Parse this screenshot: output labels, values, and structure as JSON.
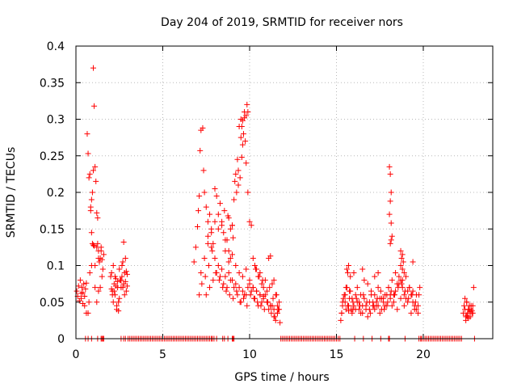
{
  "chart_data": {
    "type": "scatter",
    "title": "Day 204 of 2019, SRMTID for receiver nors",
    "xlabel": "GPS time / hours",
    "ylabel": "SRMTID / TECUs",
    "xlim": [
      0,
      24
    ],
    "ylim": [
      0,
      0.4
    ],
    "xticks": [
      0,
      5,
      10,
      15,
      20
    ],
    "xtick_labels": [
      "0",
      "5",
      "10",
      "15",
      "20"
    ],
    "yticks": [
      0,
      0.05,
      0.1,
      0.15,
      0.2,
      0.25,
      0.3,
      0.35,
      0.4
    ],
    "ytick_labels": [
      "0",
      "0.05",
      "0.1",
      "0.15",
      "0.2",
      "0.25",
      "0.3",
      "0.35",
      "0.4"
    ],
    "grid": true,
    "marker": "plus",
    "color": "#ff0000",
    "series": [
      {
        "name": "SRMTID",
        "x": [
          0.05,
          0.1,
          0.15,
          0.2,
          0.25,
          0.3,
          0.35,
          0.4,
          0.45,
          0.5,
          0.55,
          0.6,
          0.65,
          0.7,
          0.75,
          0.8,
          0.85,
          0.9,
          0.95,
          1.0,
          1.05,
          1.1,
          1.15,
          1.2,
          1.25,
          1.3,
          1.35,
          1.4,
          1.45,
          1.5,
          1.55,
          1.6,
          0.3,
          0.5,
          0.7,
          0.9,
          1.1,
          1.3,
          1.5,
          0.4,
          0.8,
          1.2,
          1.0,
          1.05,
          1.1,
          0.85,
          0.9,
          0.95,
          1.0,
          1.2,
          1.3,
          1.4,
          0.6,
          0.75,
          1.25,
          1.45,
          2.0,
          2.05,
          2.1,
          2.15,
          2.2,
          2.25,
          2.3,
          2.35,
          2.4,
          2.45,
          2.5,
          2.55,
          2.6,
          2.65,
          2.7,
          2.75,
          2.8,
          2.85,
          2.9,
          2.95,
          2.1,
          2.3,
          2.5,
          2.7,
          2.9,
          2.2,
          2.4,
          2.6,
          2.8,
          2.15,
          2.35,
          2.55,
          2.75,
          2.25,
          2.45,
          2.65,
          2.85,
          2.05,
          2.95,
          6.8,
          6.9,
          7.0,
          7.05,
          7.1,
          7.15,
          7.2,
          7.3,
          7.4,
          7.5,
          7.6,
          7.7,
          7.8,
          7.9,
          8.0,
          8.1,
          8.2,
          8.3,
          8.4,
          8.5,
          8.6,
          8.7,
          8.8,
          8.9,
          9.0,
          9.1,
          9.2,
          9.3,
          9.4,
          9.5,
          9.6,
          9.7,
          9.8,
          9.9,
          10.0,
          10.1,
          10.2,
          10.3,
          10.4,
          10.5,
          10.6,
          10.7,
          10.8,
          10.9,
          11.0,
          11.1,
          11.2,
          11.3,
          11.4,
          11.5,
          11.6,
          11.7,
          7.2,
          7.4,
          7.6,
          7.8,
          8.0,
          8.2,
          8.4,
          8.6,
          8.8,
          9.0,
          9.2,
          9.4,
          9.6,
          9.8,
          10.0,
          10.2,
          10.4,
          10.6,
          10.8,
          11.0,
          11.2,
          11.4,
          11.6,
          7.25,
          7.45,
          7.65,
          7.85,
          8.05,
          8.25,
          8.45,
          8.65,
          8.85,
          9.05,
          9.25,
          9.45,
          9.65,
          9.85,
          10.05,
          10.25,
          10.45,
          10.65,
          10.85,
          11.05,
          11.25,
          11.45,
          7.5,
          7.7,
          7.9,
          8.1,
          8.3,
          8.5,
          8.7,
          8.9,
          9.1,
          9.3,
          9.5,
          9.7,
          9.9,
          10.1,
          10.3,
          10.5,
          10.7,
          10.9,
          11.1,
          11.3,
          11.5,
          7.6,
          7.8,
          8.0,
          8.2,
          8.4,
          8.6,
          8.8,
          9.0,
          9.2,
          9.4,
          9.6,
          9.8,
          10.0,
          10.2,
          10.4,
          10.6,
          10.8,
          11.0,
          11.2,
          11.4,
          7.1,
          7.35,
          8.55,
          8.75,
          9.15,
          9.35,
          9.55,
          9.75,
          9.45,
          9.5,
          9.55,
          9.6,
          9.65,
          9.7,
          9.25,
          9.35,
          9.8,
          9.85,
          9.9,
          8.8,
          8.9,
          9.0,
          9.05,
          10.35,
          10.55,
          10.75,
          11.15,
          11.35,
          11.55,
          11.6,
          11.65,
          11.75,
          11.7,
          15.25,
          15.3,
          15.35,
          15.4,
          15.45,
          15.5,
          15.55,
          15.6,
          15.65,
          15.7,
          15.75,
          15.8,
          15.85,
          15.9,
          15.95,
          16.0,
          16.1,
          16.2,
          16.3,
          16.4,
          16.5,
          16.6,
          16.7,
          16.8,
          16.9,
          17.0,
          17.1,
          17.2,
          17.3,
          17.4,
          17.5,
          17.6,
          17.7,
          17.8,
          17.9,
          18.0,
          18.1,
          18.2,
          18.3,
          18.4,
          18.5,
          18.6,
          18.7,
          18.8,
          18.9,
          19.0,
          19.1,
          19.2,
          19.3,
          19.4,
          19.5,
          19.6,
          19.7,
          19.8,
          15.3,
          15.5,
          15.7,
          15.9,
          16.1,
          16.3,
          16.5,
          16.7,
          16.9,
          17.1,
          17.3,
          17.5,
          17.7,
          17.9,
          18.1,
          18.3,
          18.5,
          18.7,
          18.9,
          19.1,
          19.3,
          19.5,
          19.7,
          15.35,
          15.55,
          15.75,
          15.95,
          16.15,
          16.35,
          16.55,
          16.75,
          16.95,
          17.15,
          17.35,
          17.55,
          17.75,
          17.95,
          18.15,
          18.35,
          18.55,
          18.75,
          18.95,
          19.15,
          19.35,
          19.55,
          19.75,
          15.6,
          15.8,
          16.0,
          16.2,
          16.4,
          16.6,
          16.8,
          17.0,
          17.2,
          17.4,
          17.6,
          17.8,
          18.0,
          18.2,
          18.4,
          18.6,
          18.8,
          19.0,
          19.2,
          19.4,
          19.6,
          18.05,
          18.1,
          18.15,
          18.1,
          18.05,
          18.15,
          18.2,
          18.1,
          18.15,
          18.7,
          18.75,
          18.8,
          18.85,
          18.7,
          18.8,
          18.9,
          19.4,
          15.65,
          15.7,
          16.5,
          17.2,
          17.4,
          22.3,
          22.35,
          22.4,
          22.45,
          22.5,
          22.55,
          22.6,
          22.65,
          22.7,
          22.75,
          22.8,
          22.85,
          22.4,
          22.5,
          22.6,
          22.7,
          22.8,
          22.45,
          22.55,
          22.65,
          22.75,
          22.85,
          22.9,
          22.5,
          22.6,
          0.55,
          0.7,
          0.9,
          1.25,
          1.45,
          1.5,
          1.55,
          1.6,
          2.6,
          2.75,
          2.85,
          3.0,
          3.1,
          3.2,
          3.3,
          3.4,
          3.5,
          3.6,
          3.7,
          3.8,
          3.9,
          4.0,
          4.1,
          4.2,
          4.3,
          4.4,
          4.5,
          4.6,
          4.7,
          4.8,
          4.9,
          5.0,
          5.1,
          5.2,
          5.3,
          5.4,
          5.5,
          5.6,
          5.7,
          5.8,
          5.9,
          6.0,
          6.1,
          6.2,
          6.3,
          6.4,
          6.5,
          6.6,
          6.7,
          6.8,
          6.9,
          7.0,
          7.1,
          7.2,
          7.3,
          7.4,
          7.5,
          7.6,
          7.7,
          7.8,
          7.85,
          7.95,
          8.1,
          8.45,
          8.55,
          8.75,
          9.0,
          9.05,
          9.1,
          11.8,
          11.9,
          12.0,
          12.1,
          12.2,
          12.3,
          12.4,
          12.5,
          12.6,
          12.7,
          12.8,
          12.9,
          13.0,
          13.1,
          13.2,
          13.3,
          13.4,
          13.5,
          13.6,
          13.7,
          13.8,
          13.9,
          14.0,
          14.1,
          14.2,
          14.3,
          14.4,
          14.5,
          14.6,
          14.7,
          14.8,
          14.9,
          15.0,
          15.1,
          15.2,
          16.05,
          16.55,
          17.05,
          17.55,
          18.0,
          18.05,
          18.95,
          19.75,
          19.85,
          19.9,
          20.0,
          20.1,
          20.2,
          20.3,
          20.4,
          20.5,
          20.6,
          20.7,
          20.8,
          20.9,
          21.0,
          21.1,
          21.2,
          21.3,
          21.4,
          21.5,
          21.6,
          21.7,
          21.8,
          21.9,
          22.0,
          22.1,
          22.2,
          22.95
        ],
        "y": [
          0.065,
          0.058,
          0.072,
          0.052,
          0.08,
          0.062,
          0.07,
          0.048,
          0.075,
          0.058,
          0.068,
          0.076,
          0.28,
          0.253,
          0.22,
          0.225,
          0.18,
          0.145,
          0.13,
          0.37,
          0.318,
          0.235,
          0.215,
          0.172,
          0.165,
          0.12,
          0.105,
          0.11,
          0.125,
          0.108,
          0.095,
          0.115,
          0.055,
          0.045,
          0.035,
          0.1,
          0.07,
          0.065,
          0.085,
          0.063,
          0.09,
          0.125,
          0.128,
          0.127,
          0.1,
          0.175,
          0.19,
          0.2,
          0.23,
          0.05,
          0.11,
          0.07,
          0.035,
          0.05,
          0.13,
          0.12,
          0.085,
          0.09,
          0.065,
          0.1,
          0.075,
          0.06,
          0.082,
          0.04,
          0.07,
          0.05,
          0.095,
          0.08,
          0.07,
          0.085,
          0.105,
          0.132,
          0.09,
          0.078,
          0.065,
          0.088,
          0.06,
          0.072,
          0.055,
          0.07,
          0.092,
          0.065,
          0.078,
          0.08,
          0.06,
          0.05,
          0.045,
          0.08,
          0.075,
          0.085,
          0.038,
          0.1,
          0.11,
          0.068,
          0.072,
          0.105,
          0.125,
          0.153,
          0.175,
          0.195,
          0.257,
          0.285,
          0.288,
          0.2,
          0.18,
          0.16,
          0.17,
          0.145,
          0.13,
          0.205,
          0.195,
          0.15,
          0.185,
          0.16,
          0.145,
          0.12,
          0.135,
          0.105,
          0.11,
          0.155,
          0.19,
          0.225,
          0.245,
          0.29,
          0.3,
          0.265,
          0.31,
          0.24,
          0.2,
          0.16,
          0.155,
          0.11,
          0.1,
          0.095,
          0.085,
          0.09,
          0.075,
          0.07,
          0.08,
          0.065,
          0.11,
          0.113,
          0.075,
          0.08,
          0.06,
          0.045,
          0.04,
          0.09,
          0.11,
          0.13,
          0.125,
          0.11,
          0.1,
          0.095,
          0.085,
          0.09,
          0.08,
          0.075,
          0.07,
          0.065,
          0.06,
          0.075,
          0.07,
          0.065,
          0.06,
          0.055,
          0.05,
          0.045,
          0.04,
          0.035,
          0.075,
          0.085,
          0.1,
          0.12,
          0.09,
          0.08,
          0.07,
          0.065,
          0.06,
          0.055,
          0.065,
          0.05,
          0.055,
          0.045,
          0.06,
          0.055,
          0.05,
          0.045,
          0.04,
          0.05,
          0.035,
          0.03,
          0.06,
          0.07,
          0.08,
          0.09,
          0.085,
          0.075,
          0.07,
          0.08,
          0.07,
          0.06,
          0.05,
          0.06,
          0.07,
          0.065,
          0.055,
          0.045,
          0.05,
          0.06,
          0.04,
          0.045,
          0.025,
          0.14,
          0.15,
          0.16,
          0.17,
          0.155,
          0.135,
          0.12,
          0.115,
          0.1,
          0.09,
          0.085,
          0.095,
          0.08,
          0.07,
          0.065,
          0.06,
          0.058,
          0.05,
          0.045,
          0.03,
          0.06,
          0.23,
          0.175,
          0.168,
          0.215,
          0.23,
          0.248,
          0.27,
          0.22,
          0.275,
          0.29,
          0.298,
          0.28,
          0.302,
          0.2,
          0.21,
          0.305,
          0.32,
          0.31,
          0.165,
          0.15,
          0.155,
          0.138,
          0.095,
          0.085,
          0.08,
          0.07,
          0.055,
          0.06,
          0.035,
          0.04,
          0.022,
          0.05,
          0.025,
          0.035,
          0.045,
          0.055,
          0.06,
          0.05,
          0.04,
          0.07,
          0.045,
          0.038,
          0.055,
          0.065,
          0.04,
          0.035,
          0.05,
          0.045,
          0.06,
          0.05,
          0.04,
          0.035,
          0.045,
          0.055,
          0.04,
          0.03,
          0.05,
          0.06,
          0.045,
          0.04,
          0.05,
          0.045,
          0.035,
          0.04,
          0.055,
          0.045,
          0.06,
          0.07,
          0.055,
          0.045,
          0.06,
          0.065,
          0.075,
          0.085,
          0.08,
          0.07,
          0.06,
          0.055,
          0.065,
          0.07,
          0.06,
          0.05,
          0.045,
          0.04,
          0.035,
          0.07,
          0.035,
          0.06,
          0.045,
          0.055,
          0.04,
          0.05,
          0.035,
          0.045,
          0.04,
          0.05,
          0.045,
          0.055,
          0.05,
          0.045,
          0.06,
          0.05,
          0.04,
          0.055,
          0.045,
          0.05,
          0.035,
          0.04,
          0.045,
          0.05,
          0.07,
          0.065,
          0.04,
          0.055,
          0.045,
          0.06,
          0.05,
          0.035,
          0.045,
          0.055,
          0.065,
          0.04,
          0.05,
          0.065,
          0.06,
          0.07,
          0.075,
          0.065,
          0.055,
          0.06,
          0.05,
          0.06,
          0.095,
          0.085,
          0.09,
          0.07,
          0.06,
          0.08,
          0.075,
          0.065,
          0.06,
          0.07,
          0.055,
          0.06,
          0.07,
          0.08,
          0.09,
          0.075,
          0.08,
          0.085,
          0.07,
          0.065,
          0.06,
          0.235,
          0.225,
          0.2,
          0.188,
          0.17,
          0.158,
          0.14,
          0.13,
          0.135,
          0.12,
          0.11,
          0.115,
          0.105,
          0.1,
          0.095,
          0.09,
          0.105,
          0.09,
          0.1,
          0.095,
          0.085,
          0.09,
          0.035,
          0.045,
          0.04,
          0.03,
          0.05,
          0.035,
          0.04,
          0.045,
          0.03,
          0.04,
          0.035,
          0.045,
          0.055,
          0.05,
          0.04,
          0.035,
          0.038,
          0.025,
          0.03,
          0.04,
          0.045,
          0.035,
          0.07,
          0.032,
          0.028,
          0,
          0,
          0,
          0,
          0,
          0,
          0,
          0,
          0,
          0,
          0,
          0,
          0,
          0,
          0,
          0,
          0,
          0,
          0,
          0,
          0,
          0,
          0,
          0,
          0,
          0,
          0,
          0,
          0,
          0,
          0,
          0,
          0,
          0,
          0,
          0,
          0,
          0,
          0,
          0,
          0,
          0,
          0,
          0,
          0,
          0,
          0,
          0,
          0,
          0,
          0,
          0,
          0,
          0,
          0,
          0,
          0,
          0,
          0,
          0,
          0,
          0,
          0,
          0,
          0,
          0,
          0,
          0,
          0,
          0,
          0,
          0,
          0,
          0,
          0,
          0,
          0,
          0,
          0,
          0,
          0,
          0,
          0,
          0,
          0,
          0,
          0,
          0,
          0,
          0,
          0,
          0,
          0,
          0,
          0,
          0,
          0,
          0,
          0,
          0,
          0,
          0,
          0,
          0,
          0,
          0,
          0,
          0,
          0,
          0,
          0,
          0,
          0,
          0,
          0,
          0,
          0,
          0,
          0,
          0,
          0,
          0,
          0,
          0,
          0,
          0,
          0,
          0,
          0,
          0,
          0,
          0,
          0,
          0,
          0,
          0,
          0,
          0
        ]
      }
    ]
  }
}
